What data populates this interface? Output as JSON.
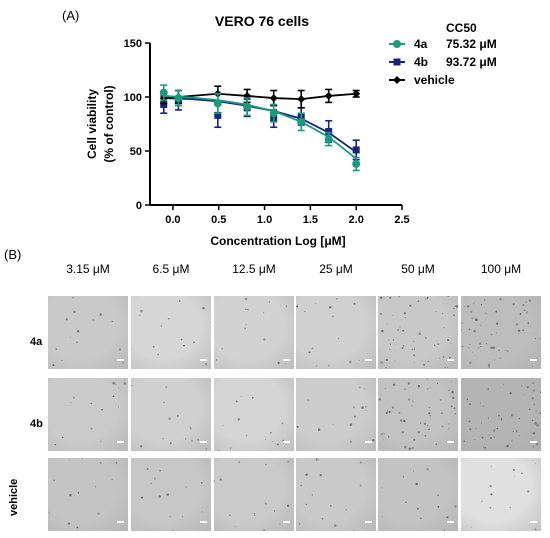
{
  "panel_a": {
    "label": "(A)",
    "chart_data": {
      "type": "line",
      "title": "VERO 76 cells",
      "xlabel": "Concentration Log [μM]",
      "ylabel_line1": "Cell viability",
      "ylabel_line2": "(% of control)",
      "xlim": [
        -0.25,
        2.5
      ],
      "ylim": [
        0,
        150
      ],
      "x_ticks": [
        "0.0",
        "0.5",
        "1.0",
        "1.5",
        "2.0",
        "2.5"
      ],
      "x_tick_values": [
        0,
        0.5,
        1.0,
        1.5,
        2.0,
        2.5
      ],
      "y_ticks": [
        "0",
        "50",
        "100",
        "150"
      ],
      "y_tick_values": [
        0,
        50,
        100,
        150
      ],
      "grid": false,
      "legend_position": "top-right",
      "legend_header": "CC50",
      "series": [
        {
          "name": "4a",
          "cc50": "75.32 μM",
          "color": "#1a9b7c",
          "marker": "circle",
          "x": [
            -0.1,
            0.06,
            0.49,
            0.81,
            1.1,
            1.4,
            1.7,
            2.0
          ],
          "y": [
            104,
            99,
            94,
            91,
            85,
            77,
            61,
            38
          ],
          "err": [
            7,
            7,
            9,
            8,
            8,
            8,
            6,
            6
          ],
          "fit": [
            [
              -0.1,
              101
            ],
            [
              0.2,
              99.5
            ],
            [
              0.5,
              97
            ],
            [
              0.8,
              93
            ],
            [
              1.1,
              87
            ],
            [
              1.4,
              77
            ],
            [
              1.7,
              63
            ],
            [
              2.0,
              43
            ]
          ]
        },
        {
          "name": "4b",
          "cc50": "93.72 μM",
          "color": "#1a237e",
          "marker": "square",
          "x": [
            -0.1,
            0.06,
            0.49,
            0.81,
            1.1,
            1.4,
            1.7,
            2.0
          ],
          "y": [
            93,
            97,
            83,
            90,
            80,
            82,
            68,
            51
          ],
          "err": [
            8,
            9,
            11,
            8,
            8,
            8,
            10,
            9
          ],
          "fit": [
            [
              -0.1,
              99
            ],
            [
              0.2,
              98
            ],
            [
              0.5,
              96
            ],
            [
              0.8,
              92
            ],
            [
              1.1,
              87
            ],
            [
              1.4,
              80
            ],
            [
              1.7,
              67
            ],
            [
              2.0,
              49
            ]
          ]
        },
        {
          "name": "vehicle",
          "color": "#000000",
          "marker": "diamond",
          "x": [
            -0.1,
            0.06,
            0.49,
            0.81,
            1.1,
            1.4,
            1.7,
            2.0
          ],
          "y": [
            99,
            100,
            103,
            101,
            99,
            98,
            101,
            103
          ],
          "err": [
            5,
            6,
            7,
            6,
            7,
            8,
            6,
            3
          ],
          "fit": [
            [
              -0.1,
              99
            ],
            [
              0.06,
              100
            ],
            [
              0.49,
              103
            ],
            [
              0.81,
              101
            ],
            [
              1.1,
              99
            ],
            [
              1.4,
              98
            ],
            [
              1.7,
              101
            ],
            [
              2.0,
              103
            ]
          ]
        }
      ]
    }
  },
  "panel_b": {
    "label": "(B)",
    "columns": [
      "3.15 μM",
      "6.5 μM",
      "12.5 μM",
      "25 μM",
      "50 μM",
      "100 μM"
    ],
    "rows": [
      "4a",
      "4b",
      "vehicle"
    ]
  }
}
